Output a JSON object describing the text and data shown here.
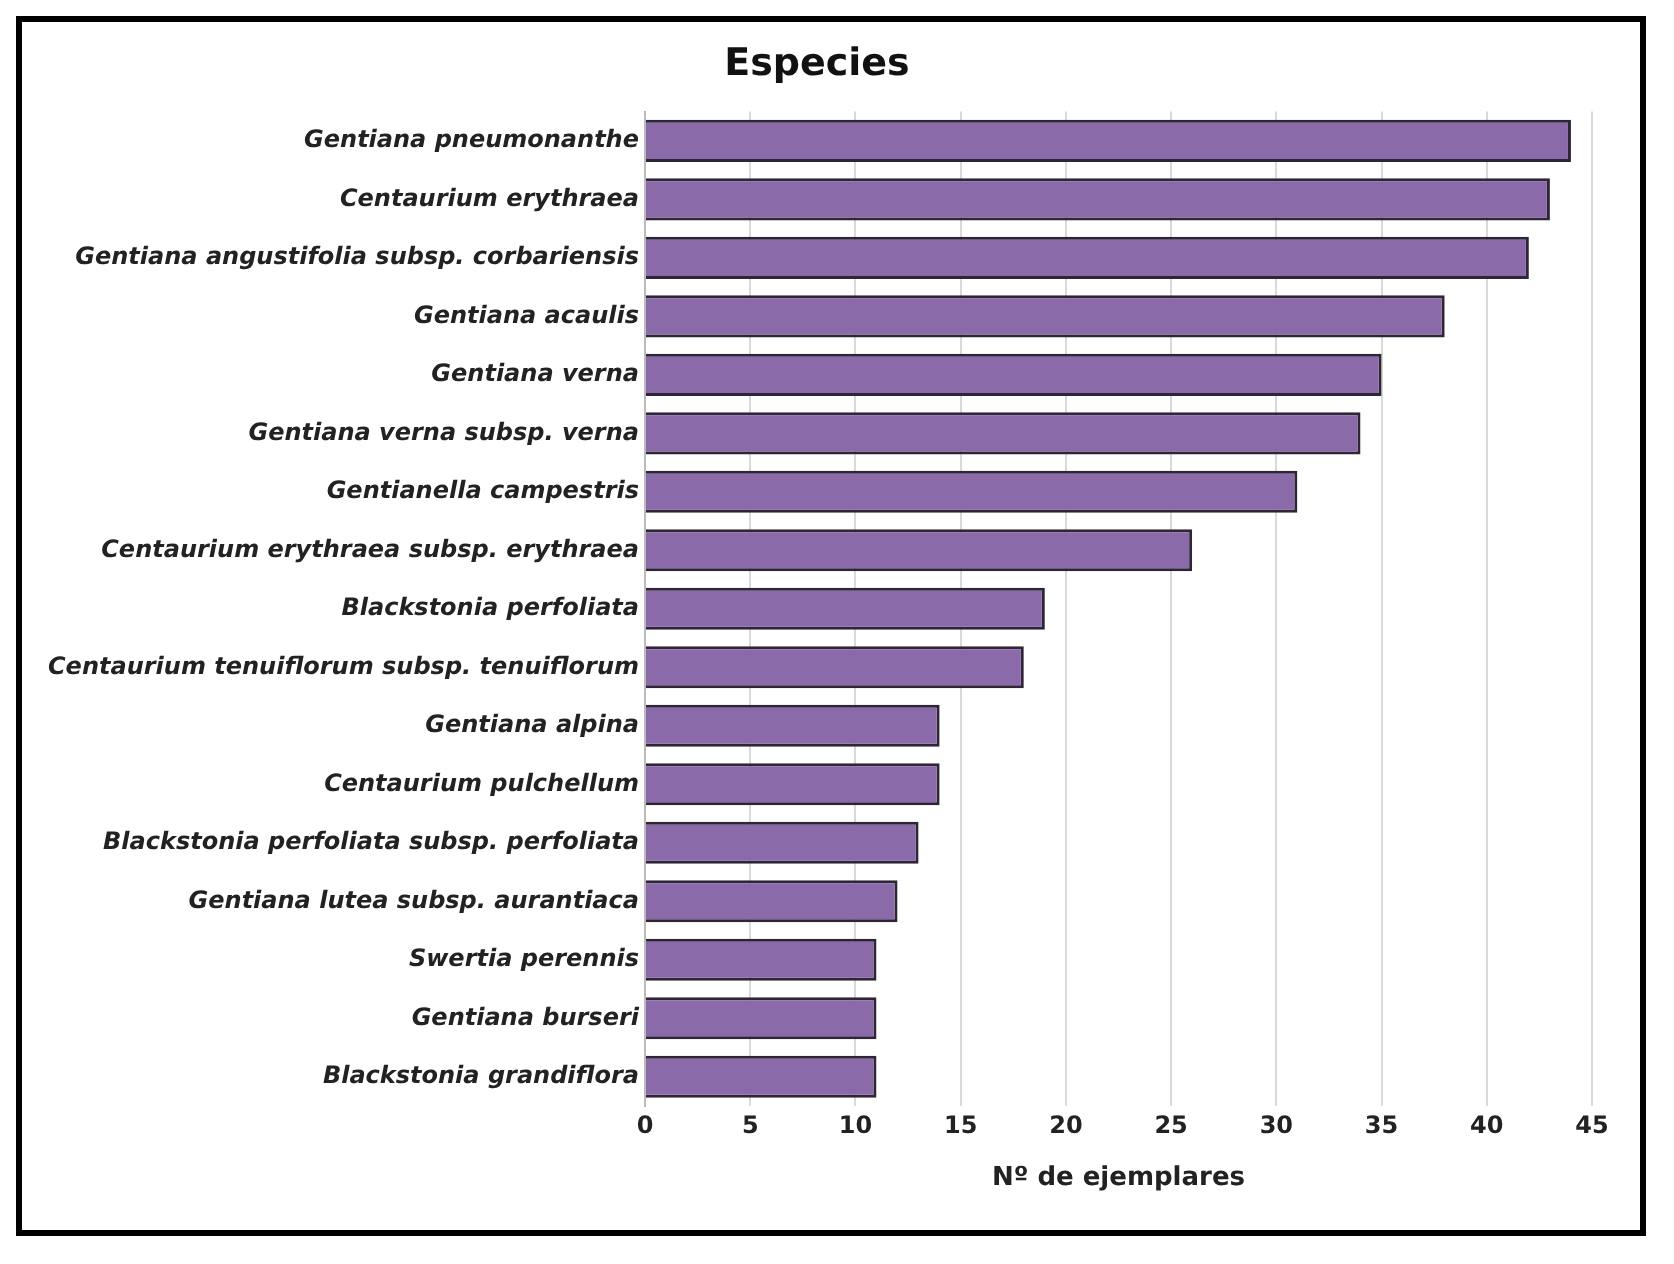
{
  "chart_data": {
    "type": "bar",
    "orientation": "horizontal",
    "title": "Especies",
    "xlabel": "Nº de ejemplares",
    "categories": [
      "Gentiana pneumonanthe",
      "Centaurium erythraea",
      "Gentiana angustifolia subsp. corbariensis",
      "Gentiana acaulis",
      "Gentiana verna",
      "Gentiana verna subsp. verna",
      "Gentianella campestris",
      "Centaurium erythraea subsp. erythraea",
      "Blackstonia perfoliata",
      "Centaurium tenuiflorum subsp. tenuiflorum",
      "Gentiana alpina",
      "Centaurium pulchellum",
      "Blackstonia perfoliata subsp. perfoliata",
      "Gentiana lutea subsp. aurantiaca",
      "Swertia perennis",
      "Gentiana burseri",
      "Blackstonia grandiflora"
    ],
    "values": [
      44,
      43,
      42,
      38,
      35,
      34,
      31,
      26,
      19,
      18,
      14,
      14,
      13,
      12,
      11,
      11,
      11
    ],
    "color": "#8a6aa8",
    "xlim": [
      0,
      45
    ],
    "xticks": [
      0,
      5,
      10,
      15,
      20,
      25,
      30,
      35,
      40,
      45
    ],
    "grid": "x",
    "legend": false
  }
}
